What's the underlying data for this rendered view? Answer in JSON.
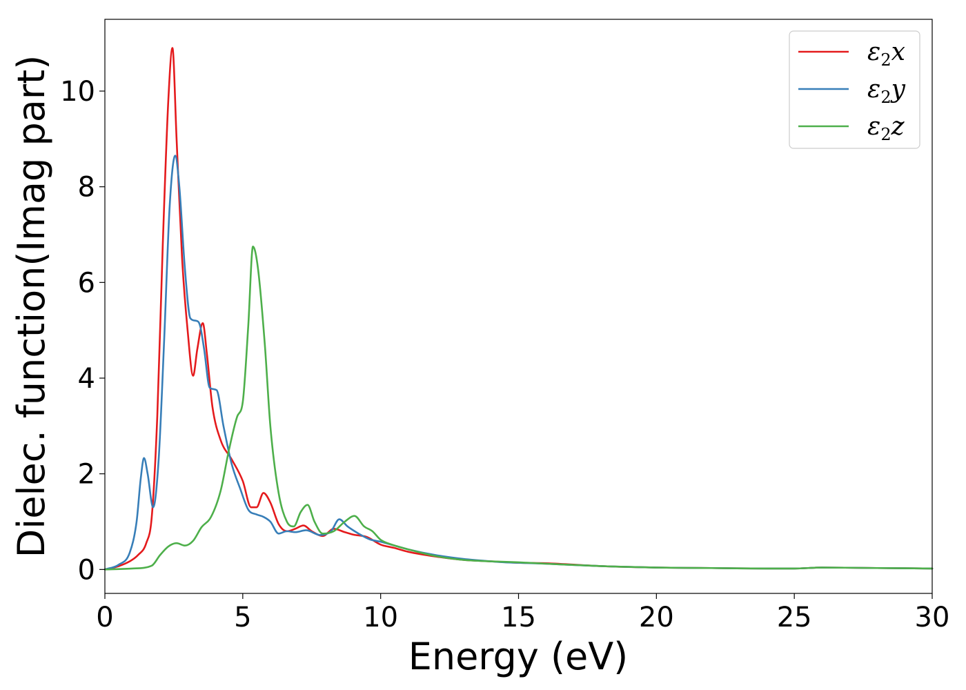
{
  "chart_data": {
    "type": "line",
    "title": "",
    "xlabel": "Energy (eV)",
    "ylabel": "Dielec. function(Imag part)",
    "xlim": [
      0,
      30
    ],
    "ylim": [
      -0.5,
      11.5
    ],
    "xticks": [
      0,
      5,
      10,
      15,
      20,
      25,
      30
    ],
    "yticks": [
      0,
      2,
      4,
      6,
      8,
      10
    ],
    "grid": false,
    "legend_position": "top-right",
    "series": [
      {
        "name": "ε₂x",
        "name_base": "ε",
        "name_sub": "2",
        "name_axis": "x",
        "color": "#e41a1c",
        "x": [
          0,
          0.5,
          0.9,
          1.2,
          1.5,
          1.7,
          1.9,
          2.1,
          2.3,
          2.45,
          2.6,
          2.8,
          3.0,
          3.2,
          3.35,
          3.55,
          3.7,
          3.9,
          4.2,
          4.6,
          5.0,
          5.3,
          5.5,
          5.75,
          6.0,
          6.3,
          6.6,
          6.9,
          7.2,
          7.5,
          7.9,
          8.3,
          8.7,
          9.0,
          9.5,
          10.0,
          10.5,
          11.0,
          12.0,
          13.0,
          14.0,
          15.0,
          16.0,
          18.0,
          20.0,
          22.0,
          24.0,
          25.0,
          26.0,
          28.0,
          30.0
        ],
        "y": [
          0.0,
          0.07,
          0.17,
          0.3,
          0.55,
          1.1,
          3.2,
          6.8,
          9.8,
          10.9,
          9.0,
          6.5,
          5.0,
          4.05,
          4.6,
          5.15,
          4.5,
          3.4,
          2.7,
          2.3,
          1.85,
          1.3,
          1.3,
          1.6,
          1.4,
          0.95,
          0.8,
          0.85,
          0.92,
          0.8,
          0.7,
          0.85,
          0.78,
          0.73,
          0.68,
          0.52,
          0.45,
          0.37,
          0.27,
          0.2,
          0.17,
          0.14,
          0.13,
          0.07,
          0.04,
          0.03,
          0.02,
          0.02,
          0.04,
          0.03,
          0.02
        ]
      },
      {
        "name": "ε₂y",
        "name_base": "ε",
        "name_sub": "2",
        "name_axis": "y",
        "color": "#377eb8",
        "x": [
          0,
          0.5,
          0.9,
          1.15,
          1.3,
          1.42,
          1.55,
          1.75,
          1.95,
          2.15,
          2.35,
          2.55,
          2.7,
          2.9,
          3.1,
          3.3,
          3.45,
          3.6,
          3.8,
          4.05,
          4.3,
          4.6,
          4.9,
          5.2,
          5.5,
          5.75,
          6.0,
          6.3,
          6.6,
          6.9,
          7.3,
          7.8,
          8.2,
          8.5,
          8.8,
          9.2,
          9.6,
          10.0,
          10.5,
          11.0,
          12.0,
          13.0,
          14.0,
          14.5,
          15.0,
          16.0,
          18.0,
          20.0,
          22.0,
          24.0,
          25.0,
          26.0,
          28.0,
          30.0
        ],
        "y": [
          0.0,
          0.1,
          0.35,
          1.0,
          1.9,
          2.33,
          2.0,
          1.3,
          2.3,
          4.8,
          7.6,
          8.65,
          8.0,
          6.3,
          5.25,
          5.2,
          5.1,
          4.6,
          3.8,
          3.75,
          3.0,
          2.2,
          1.7,
          1.25,
          1.15,
          1.1,
          1.0,
          0.75,
          0.8,
          0.78,
          0.82,
          0.72,
          0.8,
          1.05,
          0.9,
          0.75,
          0.63,
          0.58,
          0.5,
          0.42,
          0.3,
          0.22,
          0.17,
          0.15,
          0.14,
          0.12,
          0.07,
          0.04,
          0.03,
          0.02,
          0.02,
          0.04,
          0.03,
          0.02
        ]
      },
      {
        "name": "ε₂z",
        "name_base": "ε",
        "name_sub": "2",
        "name_axis": "z",
        "color": "#4daf4a",
        "x": [
          0,
          1.0,
          1.7,
          2.0,
          2.3,
          2.6,
          2.9,
          3.2,
          3.5,
          3.85,
          4.2,
          4.5,
          4.8,
          5.0,
          5.2,
          5.37,
          5.55,
          5.8,
          6.0,
          6.3,
          6.6,
          6.85,
          7.1,
          7.35,
          7.6,
          7.9,
          8.3,
          8.7,
          9.05,
          9.4,
          9.7,
          10.0,
          10.4,
          11.0,
          12.0,
          13.0,
          14.0,
          15.0,
          16.0,
          18.0,
          20.0,
          22.0,
          24.0,
          25.0,
          26.0,
          28.0,
          30.0
        ],
        "y": [
          0.0,
          0.02,
          0.08,
          0.3,
          0.48,
          0.55,
          0.5,
          0.6,
          0.88,
          1.1,
          1.65,
          2.5,
          3.2,
          3.5,
          5.1,
          6.75,
          6.3,
          4.7,
          3.0,
          1.6,
          1.0,
          0.9,
          1.2,
          1.35,
          1.0,
          0.75,
          0.8,
          1.0,
          1.12,
          0.9,
          0.8,
          0.62,
          0.52,
          0.42,
          0.28,
          0.2,
          0.17,
          0.15,
          0.12,
          0.07,
          0.04,
          0.03,
          0.02,
          0.02,
          0.04,
          0.03,
          0.02
        ]
      }
    ]
  }
}
